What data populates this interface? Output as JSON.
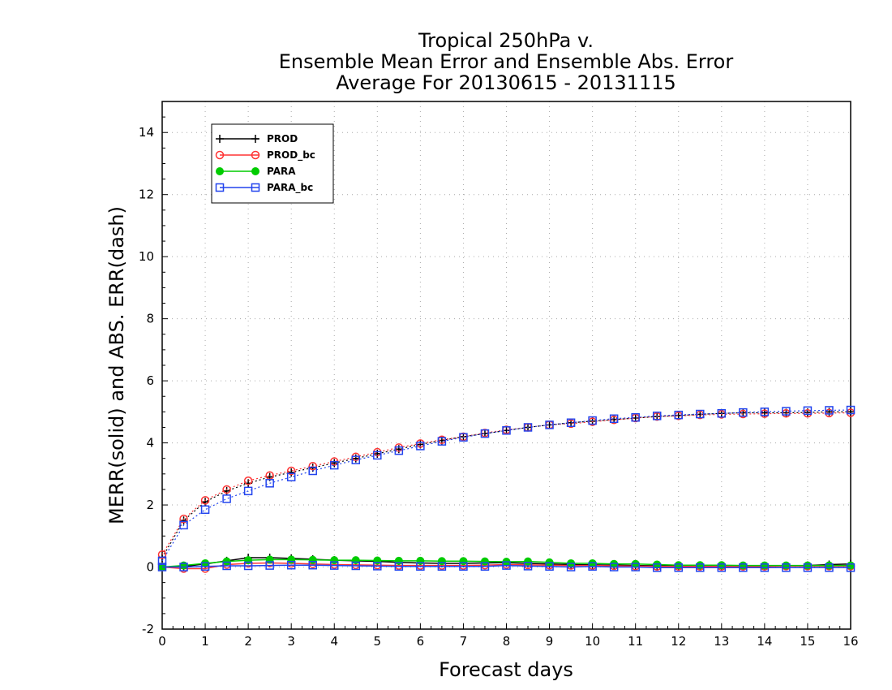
{
  "chart_data": {
    "type": "line",
    "title": [
      "Tropical 250hPa v.",
      "Ensemble Mean Error and Ensemble Abs. Error",
      "Average For 20130615 - 20131115"
    ],
    "xlabel": "Forecast days",
    "ylabel": "MERR(solid) and ABS. ERR(dash)",
    "xlim": [
      0,
      16
    ],
    "ylim": [
      -2,
      15
    ],
    "xticks": [
      0,
      1,
      2,
      3,
      4,
      5,
      6,
      7,
      8,
      9,
      10,
      11,
      12,
      13,
      14,
      15,
      16
    ],
    "xtick_labels": [
      "0",
      "1",
      "2",
      "3",
      "4",
      "5",
      "6",
      "7",
      "8",
      "9",
      "10",
      "11",
      "12",
      "13",
      "14",
      "15",
      "16"
    ],
    "yticks": [
      -2,
      0,
      2,
      4,
      6,
      8,
      10,
      12,
      14
    ],
    "ytick_labels": [
      "-2",
      "0",
      "2",
      "4",
      "6",
      "8",
      "10",
      "12",
      "14"
    ],
    "grid": true,
    "legend_position": "top-left",
    "x": [
      0,
      0.5,
      1,
      1.5,
      2,
      2.5,
      3,
      3.5,
      4,
      4.5,
      5,
      5.5,
      6,
      6.5,
      7,
      7.5,
      8,
      8.5,
      9,
      9.5,
      10,
      10.5,
      11,
      11.5,
      12,
      12.5,
      13,
      13.5,
      14,
      14.5,
      15,
      15.5,
      16
    ],
    "series": [
      {
        "name": "PROD",
        "color": "#000000",
        "marker": "plus",
        "merr": [
          0.0,
          0.02,
          0.1,
          0.2,
          0.3,
          0.3,
          0.28,
          0.25,
          0.22,
          0.2,
          0.18,
          0.15,
          0.13,
          0.12,
          0.12,
          0.13,
          0.14,
          0.12,
          0.1,
          0.08,
          0.07,
          0.06,
          0.05,
          0.04,
          0.03,
          0.03,
          0.03,
          0.03,
          0.03,
          0.04,
          0.05,
          0.08,
          0.1
        ],
        "abserr": [
          0.3,
          1.5,
          2.1,
          2.45,
          2.7,
          2.9,
          3.05,
          3.2,
          3.35,
          3.5,
          3.65,
          3.8,
          3.95,
          4.08,
          4.2,
          4.3,
          4.4,
          4.5,
          4.58,
          4.65,
          4.7,
          4.75,
          4.8,
          4.85,
          4.88,
          4.92,
          4.95,
          4.97,
          4.97,
          4.97,
          4.98,
          5.0,
          5.0
        ]
      },
      {
        "name": "PROD_bc",
        "color": "#ff3333",
        "marker": "circle",
        "merr": [
          0.0,
          -0.05,
          -0.05,
          0.08,
          0.12,
          0.13,
          0.12,
          0.1,
          0.08,
          0.07,
          0.06,
          0.05,
          0.05,
          0.05,
          0.05,
          0.06,
          0.08,
          0.07,
          0.06,
          0.05,
          0.05,
          0.04,
          0.03,
          0.02,
          0.02,
          0.02,
          0.02,
          0.02,
          0.02,
          0.03,
          0.03,
          0.03,
          0.03
        ],
        "abserr": [
          0.4,
          1.55,
          2.15,
          2.5,
          2.78,
          2.95,
          3.1,
          3.25,
          3.4,
          3.55,
          3.7,
          3.85,
          3.98,
          4.1,
          4.2,
          4.32,
          4.42,
          4.5,
          4.58,
          4.62,
          4.68,
          4.74,
          4.8,
          4.85,
          4.87,
          4.9,
          4.92,
          4.93,
          4.94,
          4.95,
          4.95,
          4.96,
          4.97
        ]
      },
      {
        "name": "PARA",
        "color": "#00cc00",
        "marker": "filled-circle",
        "merr": [
          0.0,
          0.05,
          0.12,
          0.18,
          0.22,
          0.24,
          0.24,
          0.23,
          0.22,
          0.22,
          0.21,
          0.2,
          0.2,
          0.19,
          0.19,
          0.18,
          0.17,
          0.18,
          0.15,
          0.12,
          0.12,
          0.1,
          0.1,
          0.08,
          0.06,
          0.06,
          0.06,
          0.05,
          0.05,
          0.05,
          0.05,
          0.05,
          0.05
        ]
      },
      {
        "name": "PARA_bc",
        "color": "#2244ee",
        "marker": "square",
        "merr": [
          0.0,
          0.0,
          0.02,
          0.04,
          0.04,
          0.05,
          0.06,
          0.06,
          0.05,
          0.04,
          0.03,
          0.02,
          0.02,
          0.02,
          0.02,
          0.02,
          0.05,
          0.03,
          0.02,
          0.0,
          0.02,
          0.0,
          0.0,
          -0.02,
          -0.02,
          -0.02,
          -0.02,
          -0.02,
          -0.02,
          -0.02,
          -0.02,
          -0.02,
          -0.02
        ],
        "abserr": [
          0.2,
          1.35,
          1.85,
          2.2,
          2.45,
          2.7,
          2.9,
          3.1,
          3.28,
          3.45,
          3.6,
          3.75,
          3.9,
          4.05,
          4.18,
          4.3,
          4.4,
          4.5,
          4.58,
          4.65,
          4.72,
          4.78,
          4.82,
          4.87,
          4.9,
          4.93,
          4.95,
          4.98,
          5.0,
          5.02,
          5.04,
          5.05,
          5.06
        ]
      }
    ]
  }
}
